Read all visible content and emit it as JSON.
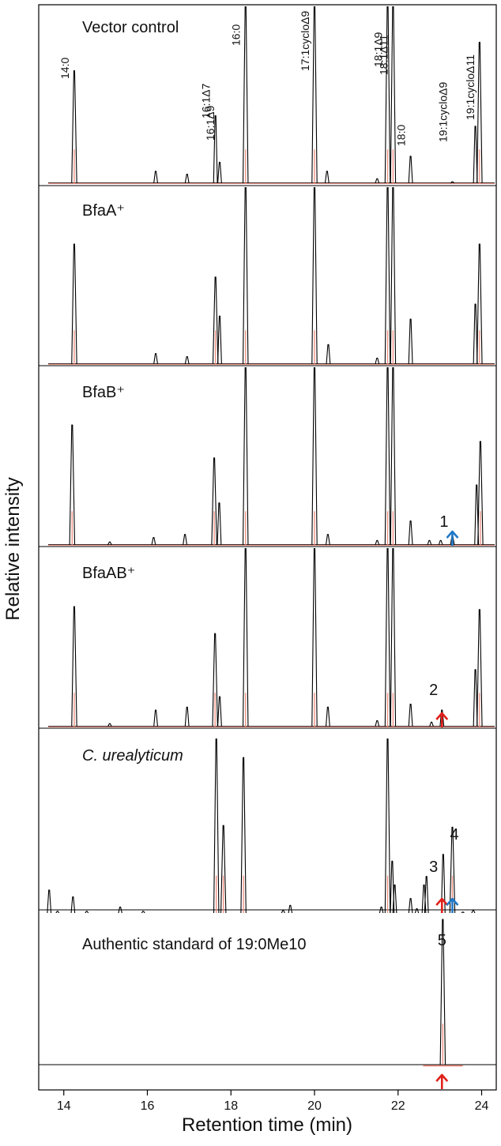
{
  "chart_data": {
    "type": "line",
    "xlabel": "Retention time (min)",
    "ylabel": "Relative intensity",
    "xlim": [
      13.4,
      24.35
    ],
    "xticks": [
      14,
      16,
      18,
      20,
      22,
      24
    ],
    "x_tick_labels": [
      "14",
      "16",
      "18",
      "20",
      "22",
      "24"
    ],
    "grid": false,
    "colors": {
      "trace": "#000000",
      "overlay": "#f08070",
      "red_arrow": "#e0201a",
      "blue_arrow": "#1f78c8"
    },
    "panels": [
      {
        "title": "Vector control",
        "title_italic": false,
        "peaks": [
          {
            "x": 14.25,
            "h": 0.75,
            "label": "14:0"
          },
          {
            "x": 16.2,
            "h": 0.08
          },
          {
            "x": 16.95,
            "h": 0.06
          },
          {
            "x": 17.63,
            "h": 0.45,
            "label": "16:1Δ7"
          },
          {
            "x": 17.73,
            "h": 0.14,
            "label": "16:1Δ9"
          },
          {
            "x": 18.35,
            "h": 1.2,
            "label": "16:0"
          },
          {
            "x": 20.0,
            "h": 1.2,
            "label": "17:1cycloΔ9"
          },
          {
            "x": 20.3,
            "h": 0.08
          },
          {
            "x": 21.5,
            "h": 0.03
          },
          {
            "x": 21.75,
            "h": 1.2,
            "label": "18:1Δ9"
          },
          {
            "x": 21.88,
            "h": 1.2,
            "label": "18:1Δ11"
          },
          {
            "x": 22.3,
            "h": 0.18,
            "label": "18:0"
          },
          {
            "x": 23.3,
            "h": 0.01,
            "label": "19:1cycloΔ9"
          },
          {
            "x": 23.85,
            "h": 0.38
          },
          {
            "x": 23.95,
            "h": 0.94,
            "label": "19:1cycloΔ11"
          }
        ]
      },
      {
        "title": "BfaA⁺",
        "title_italic": false,
        "peaks": [
          {
            "x": 14.25,
            "h": 0.8
          },
          {
            "x": 16.2,
            "h": 0.07
          },
          {
            "x": 16.95,
            "h": 0.05
          },
          {
            "x": 17.63,
            "h": 0.58
          },
          {
            "x": 17.73,
            "h": 0.32
          },
          {
            "x": 18.35,
            "h": 1.2
          },
          {
            "x": 20.0,
            "h": 1.2
          },
          {
            "x": 20.33,
            "h": 0.13
          },
          {
            "x": 21.5,
            "h": 0.04
          },
          {
            "x": 21.75,
            "h": 1.2
          },
          {
            "x": 21.88,
            "h": 1.2
          },
          {
            "x": 22.3,
            "h": 0.3
          },
          {
            "x": 23.85,
            "h": 0.4
          },
          {
            "x": 23.95,
            "h": 0.8
          }
        ]
      },
      {
        "title": "BfaB⁺",
        "title_italic": false,
        "number_label": {
          "text": "1",
          "x": 23.1
        },
        "arrows": [
          {
            "x": 23.3,
            "color": "blue"
          }
        ],
        "peaks": [
          {
            "x": 14.2,
            "h": 0.8
          },
          {
            "x": 15.1,
            "h": 0.02
          },
          {
            "x": 16.15,
            "h": 0.05
          },
          {
            "x": 16.9,
            "h": 0.07
          },
          {
            "x": 17.6,
            "h": 0.58
          },
          {
            "x": 17.72,
            "h": 0.28
          },
          {
            "x": 18.35,
            "h": 1.2
          },
          {
            "x": 20.0,
            "h": 1.2
          },
          {
            "x": 20.32,
            "h": 0.07
          },
          {
            "x": 21.5,
            "h": 0.03
          },
          {
            "x": 21.75,
            "h": 1.2
          },
          {
            "x": 21.88,
            "h": 1.2
          },
          {
            "x": 22.3,
            "h": 0.16
          },
          {
            "x": 22.75,
            "h": 0.03
          },
          {
            "x": 23.02,
            "h": 0.03
          },
          {
            "x": 23.3,
            "h": 0.06
          },
          {
            "x": 23.88,
            "h": 0.4
          },
          {
            "x": 23.97,
            "h": 0.69
          }
        ]
      },
      {
        "title": "BfaAB⁺",
        "title_italic": false,
        "number_label": {
          "text": "2",
          "x": 22.85
        },
        "arrows": [
          {
            "x": 23.05,
            "color": "red"
          }
        ],
        "peaks": [
          {
            "x": 14.25,
            "h": 0.8
          },
          {
            "x": 15.1,
            "h": 0.02
          },
          {
            "x": 16.2,
            "h": 0.11
          },
          {
            "x": 16.95,
            "h": 0.13
          },
          {
            "x": 17.62,
            "h": 0.62
          },
          {
            "x": 17.73,
            "h": 0.2
          },
          {
            "x": 18.35,
            "h": 1.2
          },
          {
            "x": 20.0,
            "h": 1.2
          },
          {
            "x": 20.32,
            "h": 0.13
          },
          {
            "x": 21.5,
            "h": 0.04
          },
          {
            "x": 21.75,
            "h": 1.2
          },
          {
            "x": 21.88,
            "h": 1.2
          },
          {
            "x": 22.3,
            "h": 0.15
          },
          {
            "x": 22.8,
            "h": 0.03
          },
          {
            "x": 23.05,
            "h": 0.11
          },
          {
            "x": 23.85,
            "h": 0.38
          },
          {
            "x": 23.95,
            "h": 0.78
          }
        ]
      },
      {
        "title": "C. urealyticum",
        "title_italic": true,
        "number_labels": [
          {
            "text": "3",
            "x": 22.85
          },
          {
            "text": "4",
            "x": 23.35
          }
        ],
        "arrows": [
          {
            "x": 23.05,
            "color": "red"
          },
          {
            "x": 23.3,
            "color": "blue"
          }
        ],
        "peaks": [
          {
            "x": 13.65,
            "h": 0.14
          },
          {
            "x": 13.85,
            "h": 0.015
          },
          {
            "x": 14.22,
            "h": 0.1
          },
          {
            "x": 14.55,
            "h": 0.015
          },
          {
            "x": 15.35,
            "h": 0.04
          },
          {
            "x": 15.9,
            "h": 0.015
          },
          {
            "x": 17.65,
            "h": 1.03
          },
          {
            "x": 17.82,
            "h": 0.52
          },
          {
            "x": 18.3,
            "h": 0.92
          },
          {
            "x": 19.25,
            "h": 0.02
          },
          {
            "x": 19.42,
            "h": 0.05
          },
          {
            "x": 21.6,
            "h": 0.04
          },
          {
            "x": 21.75,
            "h": 1.03
          },
          {
            "x": 21.86,
            "h": 0.31
          },
          {
            "x": 21.92,
            "h": 0.17
          },
          {
            "x": 22.3,
            "h": 0.09
          },
          {
            "x": 22.45,
            "h": 0.03
          },
          {
            "x": 22.62,
            "h": 0.17
          },
          {
            "x": 22.68,
            "h": 0.22
          },
          {
            "x": 23.08,
            "h": 0.35
          },
          {
            "x": 23.3,
            "h": 0.51
          },
          {
            "x": 23.55,
            "h": 0.01
          },
          {
            "x": 23.8,
            "h": 0.02
          }
        ]
      },
      {
        "title": "Authentic standard of 19:0Me10",
        "title_italic": false,
        "number_label": {
          "text": "5",
          "x": 23.05
        },
        "arrows": [
          {
            "x": 23.05,
            "color": "red"
          }
        ],
        "offset_baseline": true,
        "peaks": [
          {
            "x": 23.07,
            "h": 0.8
          }
        ]
      }
    ]
  }
}
